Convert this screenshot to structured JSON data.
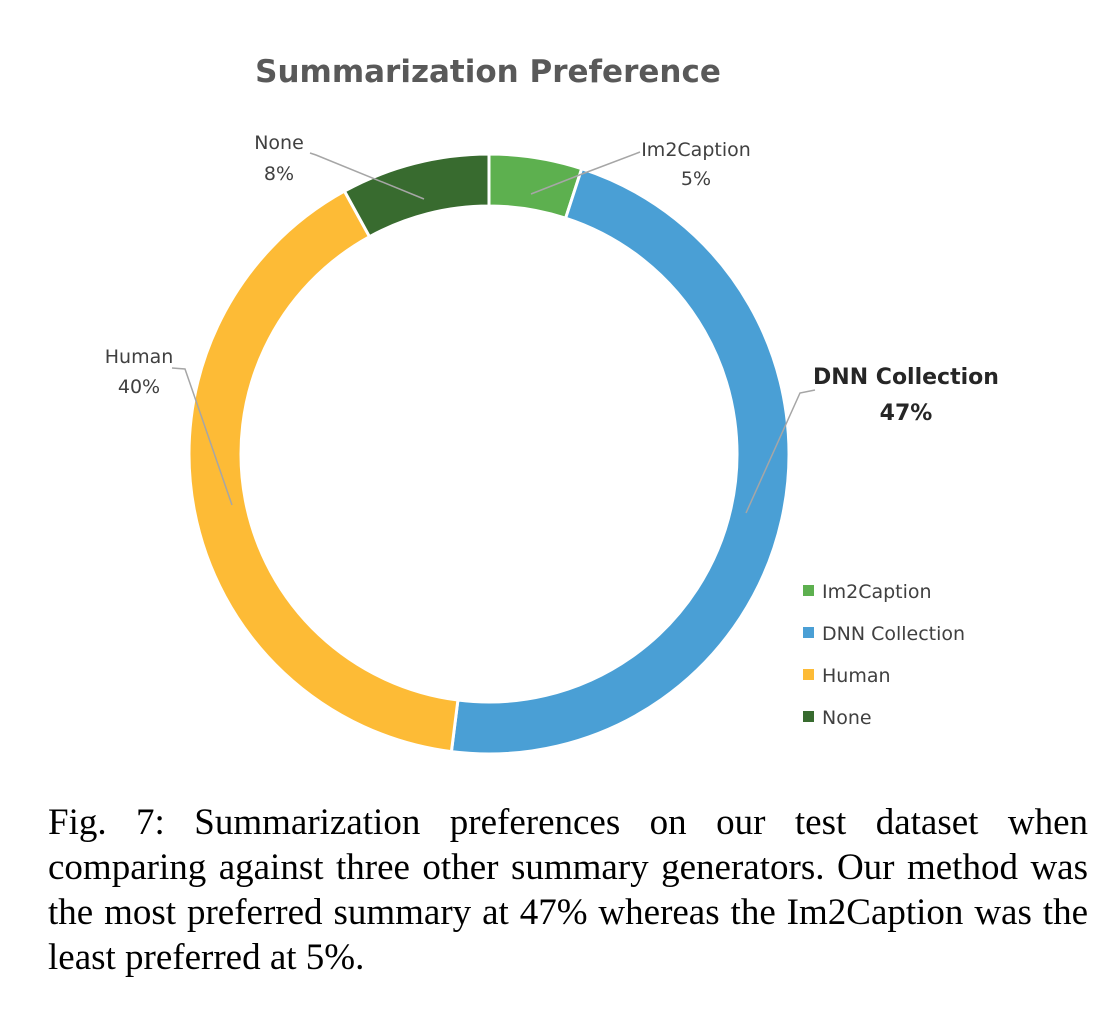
{
  "chart_data": {
    "type": "pie",
    "variant": "doughnut",
    "title": "Summarization Preference",
    "legend_position": "right-bottom",
    "slices": [
      {
        "name": "Im2Caption",
        "value": 5,
        "label": "5%",
        "color": "#5db04f"
      },
      {
        "name": "DNN Collection",
        "value": 47,
        "label": "47%",
        "color": "#4a9fd5"
      },
      {
        "name": "Human",
        "value": 40,
        "label": "40%",
        "color": "#fdbb36"
      },
      {
        "name": "None",
        "value": 8,
        "label": "8%",
        "color": "#386b2f"
      }
    ]
  },
  "caption": "Fig. 7: Summarization preferences on our test dataset when comparing against three other summary generators. Our method was the most preferred summary at 47% whereas the Im2Caption was the least preferred at 5%."
}
